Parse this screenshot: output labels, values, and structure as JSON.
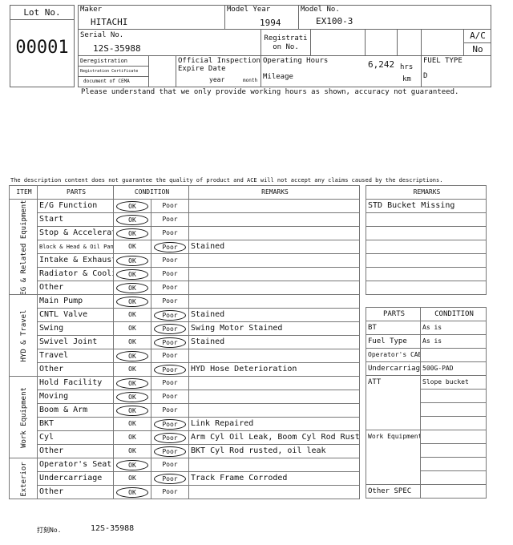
{
  "header": {
    "lot_label": "Lot No.",
    "lot_value": "00001",
    "maker_label": "Maker",
    "maker_value": "HITACHI",
    "model_year_label": "Model Year",
    "model_year_value": "1994",
    "model_no_label": "Model No.",
    "model_no_value": "EX100-3",
    "serial_label": "Serial No.",
    "serial_value": "12S-35988",
    "registration_label_1": "Registrati",
    "registration_label_2": "on No.",
    "ac_label": "A/C",
    "ac_value": "No",
    "dereg_1": "Deregistration",
    "dereg_2": "Registration Certificate",
    "dereg_3": "document of CEMA",
    "inspection_label_1": "Official Inspection",
    "inspection_label_2": "Expire Date",
    "year_label": "year",
    "month_label": "month",
    "operating_hours_label": "Operating Hours",
    "operating_hours_value": "6,242",
    "hrs_unit": "hrs",
    "mileage_label": "Mileage",
    "km_unit": "km",
    "fuel_type_label": "FUEL TYPE",
    "fuel_type_value": "D"
  },
  "notice_hours": "Please understand that we only provide working hours as shown, accuracy not guaranteed.",
  "disclaimer": "The description content does not guarantee the quality of product and ACE will not accept any claims caused by the descriptions.",
  "condition_table": {
    "headers": {
      "item": "ITEM",
      "parts": "PARTS",
      "condition": "CONDITION",
      "remarks": "REMARKS"
    },
    "ok_label": "OK",
    "poor_label": "Poor",
    "groups": [
      {
        "name": "EG & Related Equipment",
        "rows": [
          {
            "part": "E/G Function",
            "cond": "OK",
            "remark": ""
          },
          {
            "part": "Start",
            "cond": "OK",
            "remark": ""
          },
          {
            "part": "Stop & Accelerator",
            "cond": "OK",
            "remark": ""
          },
          {
            "part": "Block & Head & Oil Pan",
            "cond": "Poor",
            "remark": "Stained",
            "small": true
          },
          {
            "part": "Intake & Exhaust",
            "cond": "OK",
            "remark": ""
          },
          {
            "part": "Radiator & Cooling",
            "cond": "OK",
            "remark": ""
          },
          {
            "part": "Other",
            "cond": "OK",
            "remark": ""
          }
        ]
      },
      {
        "name": "HYD & Travel",
        "rows": [
          {
            "part": "Main Pump",
            "cond": "OK",
            "remark": ""
          },
          {
            "part": "CNTL Valve",
            "cond": "Poor",
            "remark": "Stained"
          },
          {
            "part": "Swing",
            "cond": "Poor",
            "remark": "Swing Motor Stained"
          },
          {
            "part": "Swivel Joint",
            "cond": "Poor",
            "remark": "Stained"
          },
          {
            "part": "Travel",
            "cond": "OK",
            "remark": ""
          },
          {
            "part": "Other",
            "cond": "Poor",
            "remark": "HYD Hose Deterioration"
          }
        ]
      },
      {
        "name": "Work Equipment",
        "rows": [
          {
            "part": "Hold Facility",
            "cond": "OK",
            "remark": ""
          },
          {
            "part": "Moving",
            "cond": "OK",
            "remark": ""
          },
          {
            "part": "Boom & Arm",
            "cond": "OK",
            "remark": ""
          },
          {
            "part": "BKT",
            "cond": "Poor",
            "remark": "Link Repaired"
          },
          {
            "part": "Cyl",
            "cond": "Poor",
            "remark": "Arm Cyl Oil Leak, Boom Cyl Rod Rust"
          },
          {
            "part": "Other",
            "cond": "Poor",
            "remark": "BKT Cyl Rod rusted, oil leak"
          }
        ]
      },
      {
        "name": "Exterior",
        "rows": [
          {
            "part": "Operator's Seat",
            "cond": "OK",
            "remark": ""
          },
          {
            "part": "Undercarriage",
            "cond": "Poor",
            "remark": "Track Frame Corroded"
          },
          {
            "part": "Other",
            "cond": "OK",
            "remark": ""
          }
        ]
      }
    ]
  },
  "remarks_table": {
    "header": "REMARKS",
    "rows": [
      "STD Bucket Missing",
      "",
      "",
      "",
      "",
      "",
      ""
    ]
  },
  "spec_table": {
    "headers": {
      "parts": "PARTS",
      "condition": "CONDITION"
    },
    "rows": [
      {
        "part": "BT",
        "values": [
          "As is"
        ]
      },
      {
        "part": "Fuel Type",
        "values": [
          "As is"
        ]
      },
      {
        "part": "Operator's CAB",
        "values": [
          ""
        ],
        "small": true
      },
      {
        "part": "Undercarriage",
        "values": [
          "500G-PAD"
        ]
      },
      {
        "part": "ATT",
        "values": [
          "Slope bucket",
          "",
          "",
          ""
        ]
      },
      {
        "part": "Work Equipment",
        "values": [
          "",
          "",
          "",
          ""
        ],
        "small": true
      },
      {
        "part": "Other SPEC",
        "values": [
          ""
        ]
      }
    ]
  },
  "footer": {
    "stamp_label": "打刻No.",
    "stamp_value": "12S-35988"
  }
}
